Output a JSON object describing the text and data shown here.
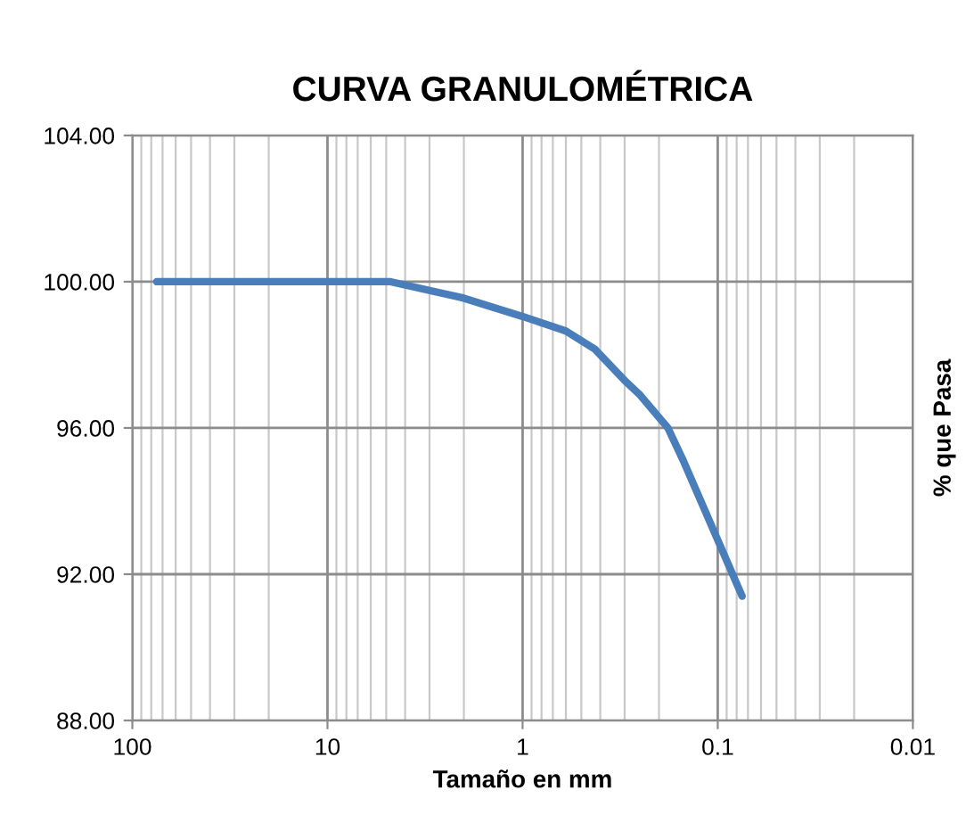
{
  "chart_data": {
    "type": "line",
    "title": "CURVA GRANULOMÉTRICA",
    "xlabel": "Tamaño en mm",
    "ylabel": "% que Pasa",
    "log": "x",
    "xlim": [
      100,
      0.01
    ],
    "xticks": [
      100,
      10,
      1,
      0.1,
      0.01
    ],
    "ylim": [
      88,
      104
    ],
    "yticks": [
      {
        "value": 88,
        "label": "88.00"
      },
      {
        "value": 92,
        "label": "92.00"
      },
      {
        "value": 96,
        "label": "96.00"
      },
      {
        "value": 100,
        "label": "100.00"
      },
      {
        "value": 104,
        "label": "104.00"
      }
    ],
    "grid": true,
    "marker": "none",
    "line_style": "solid",
    "series": [
      {
        "color": "#4a7ebb",
        "x": [
          75,
          4.75,
          2.0,
          1.0,
          0.6,
          0.425,
          0.3,
          0.25,
          0.18,
          0.15,
          0.075
        ],
        "values": [
          100,
          100,
          99.55,
          99.05,
          98.65,
          98.15,
          97.3,
          96.9,
          96.0,
          95.1,
          91.4
        ]
      }
    ]
  }
}
